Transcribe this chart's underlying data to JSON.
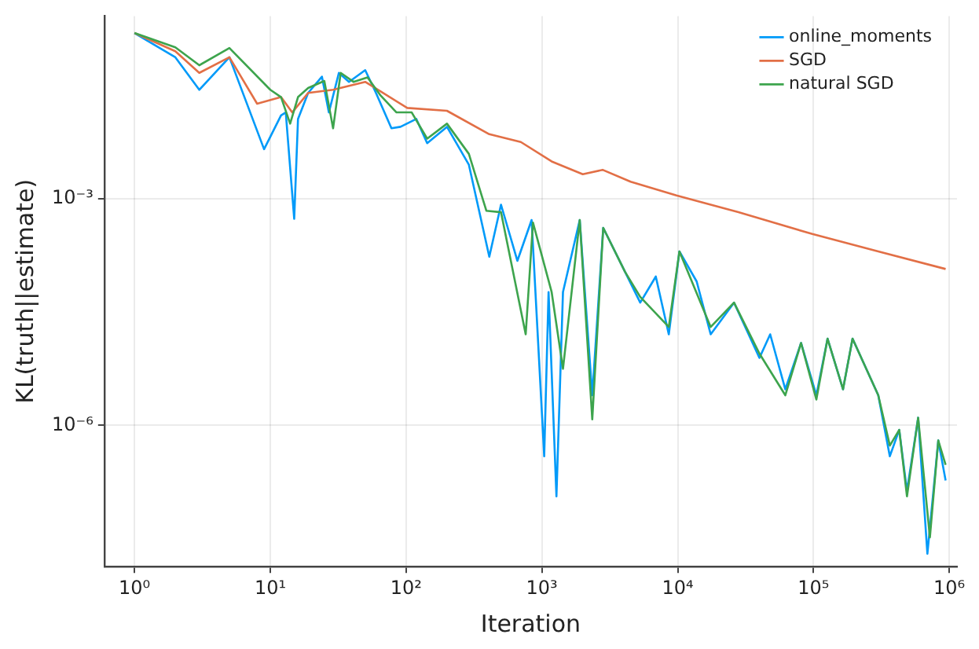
{
  "chart_data": {
    "type": "line",
    "xlabel": "Iteration",
    "ylabel": "KL(truth||estimate)",
    "log": "xy",
    "grid": true,
    "legend": "top right",
    "marker": "none",
    "line_style": "solid",
    "xlim": [
      0.64,
      1140000
    ],
    "ylim": [
      1.35e-08,
      0.26
    ],
    "xticks": [
      {
        "value": 1,
        "label": "10⁰"
      },
      {
        "value": 10,
        "label": "10¹"
      },
      {
        "value": 100,
        "label": "10²"
      },
      {
        "value": 1000,
        "label": "10³"
      },
      {
        "value": 10000,
        "label": "10⁴"
      },
      {
        "value": 100000,
        "label": "10⁵"
      },
      {
        "value": 1000000,
        "label": "10⁶"
      }
    ],
    "yticks": [
      {
        "value": 0.001,
        "label": "10⁻³"
      },
      {
        "value": 1e-06,
        "label": "10⁻⁶"
      }
    ],
    "series": [
      {
        "name": "online_moments",
        "color": "#009af9",
        "x": [
          1,
          2,
          3,
          5,
          9,
          12,
          13,
          15,
          16,
          19,
          24,
          27,
          32,
          38,
          50,
          60,
          78,
          91,
          119,
          143,
          200,
          290,
          410,
          500,
          660,
          840,
          1040,
          1120,
          1280,
          1430,
          1900,
          2350,
          2830,
          4100,
          5300,
          6900,
          8600,
          10300,
          13800,
          17500,
          26000,
          40000,
          48000,
          62000,
          81000,
          105000,
          127000,
          165000,
          194000,
          300000,
          365000,
          428000,
          488000,
          590000,
          690000,
          830000,
          940000
        ],
        "values": [
          0.155,
          0.074,
          0.0275,
          0.074,
          0.0045,
          0.0126,
          0.0138,
          0.00054,
          0.0113,
          0.025,
          0.041,
          0.0138,
          0.046,
          0.035,
          0.05,
          0.025,
          0.0085,
          0.0089,
          0.0113,
          0.0054,
          0.0089,
          0.0028,
          0.00017,
          0.00083,
          0.00015,
          0.00052,
          3.9e-07,
          5.8e-05,
          1.15e-07,
          5.8e-05,
          0.00052,
          2.5e-06,
          0.00041,
          0.000107,
          4.2e-05,
          9.3e-05,
          1.6e-05,
          0.0002,
          8e-05,
          1.6e-05,
          4.2e-05,
          7.8e-06,
          1.6e-05,
          3e-06,
          1.23e-05,
          2.5e-06,
          1.4e-05,
          3e-06,
          1.4e-05,
          2.5e-06,
          3.9e-07,
          8.7e-07,
          1.35e-07,
          1.26e-06,
          2e-08,
          6.3e-07,
          1.86e-07
        ]
      },
      {
        "name": "SGD",
        "color": "#e26f46",
        "x": [
          1,
          2,
          3,
          5,
          8,
          12,
          14.5,
          19,
          29,
          50,
          102,
          200,
          410,
          700,
          1180,
          2000,
          2800,
          4500,
          9800,
          28000,
          98000,
          300000,
          940000
        ],
        "values": [
          0.155,
          0.089,
          0.046,
          0.074,
          0.018,
          0.022,
          0.0138,
          0.025,
          0.0275,
          0.035,
          0.0158,
          0.0145,
          0.0071,
          0.0056,
          0.0031,
          0.0021,
          0.0024,
          0.00167,
          0.0011,
          0.00066,
          0.00034,
          0.0002,
          0.000117
        ]
      },
      {
        "name": "natural SGD",
        "color": "#3da44d",
        "x": [
          1,
          2,
          3,
          5,
          10,
          12,
          14,
          16,
          19,
          25,
          29,
          33,
          41,
          52,
          65,
          85,
          110,
          143,
          200,
          290,
          390,
          500,
          760,
          860,
          1180,
          1430,
          1900,
          2350,
          2830,
          4100,
          5300,
          8600,
          10300,
          17500,
          26000,
          40000,
          62000,
          81000,
          105000,
          127000,
          165000,
          194000,
          300000,
          365000,
          428000,
          488000,
          590000,
          720000,
          830000,
          940000
        ],
        "values": [
          0.155,
          0.1,
          0.058,
          0.098,
          0.0275,
          0.022,
          0.0098,
          0.022,
          0.029,
          0.036,
          0.0085,
          0.046,
          0.035,
          0.04,
          0.023,
          0.0138,
          0.0138,
          0.0062,
          0.0098,
          0.0039,
          0.00069,
          0.00066,
          1.6e-05,
          0.00048,
          5.8e-05,
          5.6e-06,
          0.00052,
          1.2e-06,
          0.00041,
          0.000107,
          5e-05,
          2e-05,
          0.0002,
          2e-05,
          4.2e-05,
          8.9e-06,
          2.5e-06,
          1.23e-05,
          2.2e-06,
          1.4e-05,
          3e-06,
          1.4e-05,
          2.5e-06,
          5.4e-07,
          8.7e-07,
          1.15e-07,
          1.26e-06,
          3.3e-08,
          6.3e-07,
          3e-07
        ]
      }
    ]
  }
}
